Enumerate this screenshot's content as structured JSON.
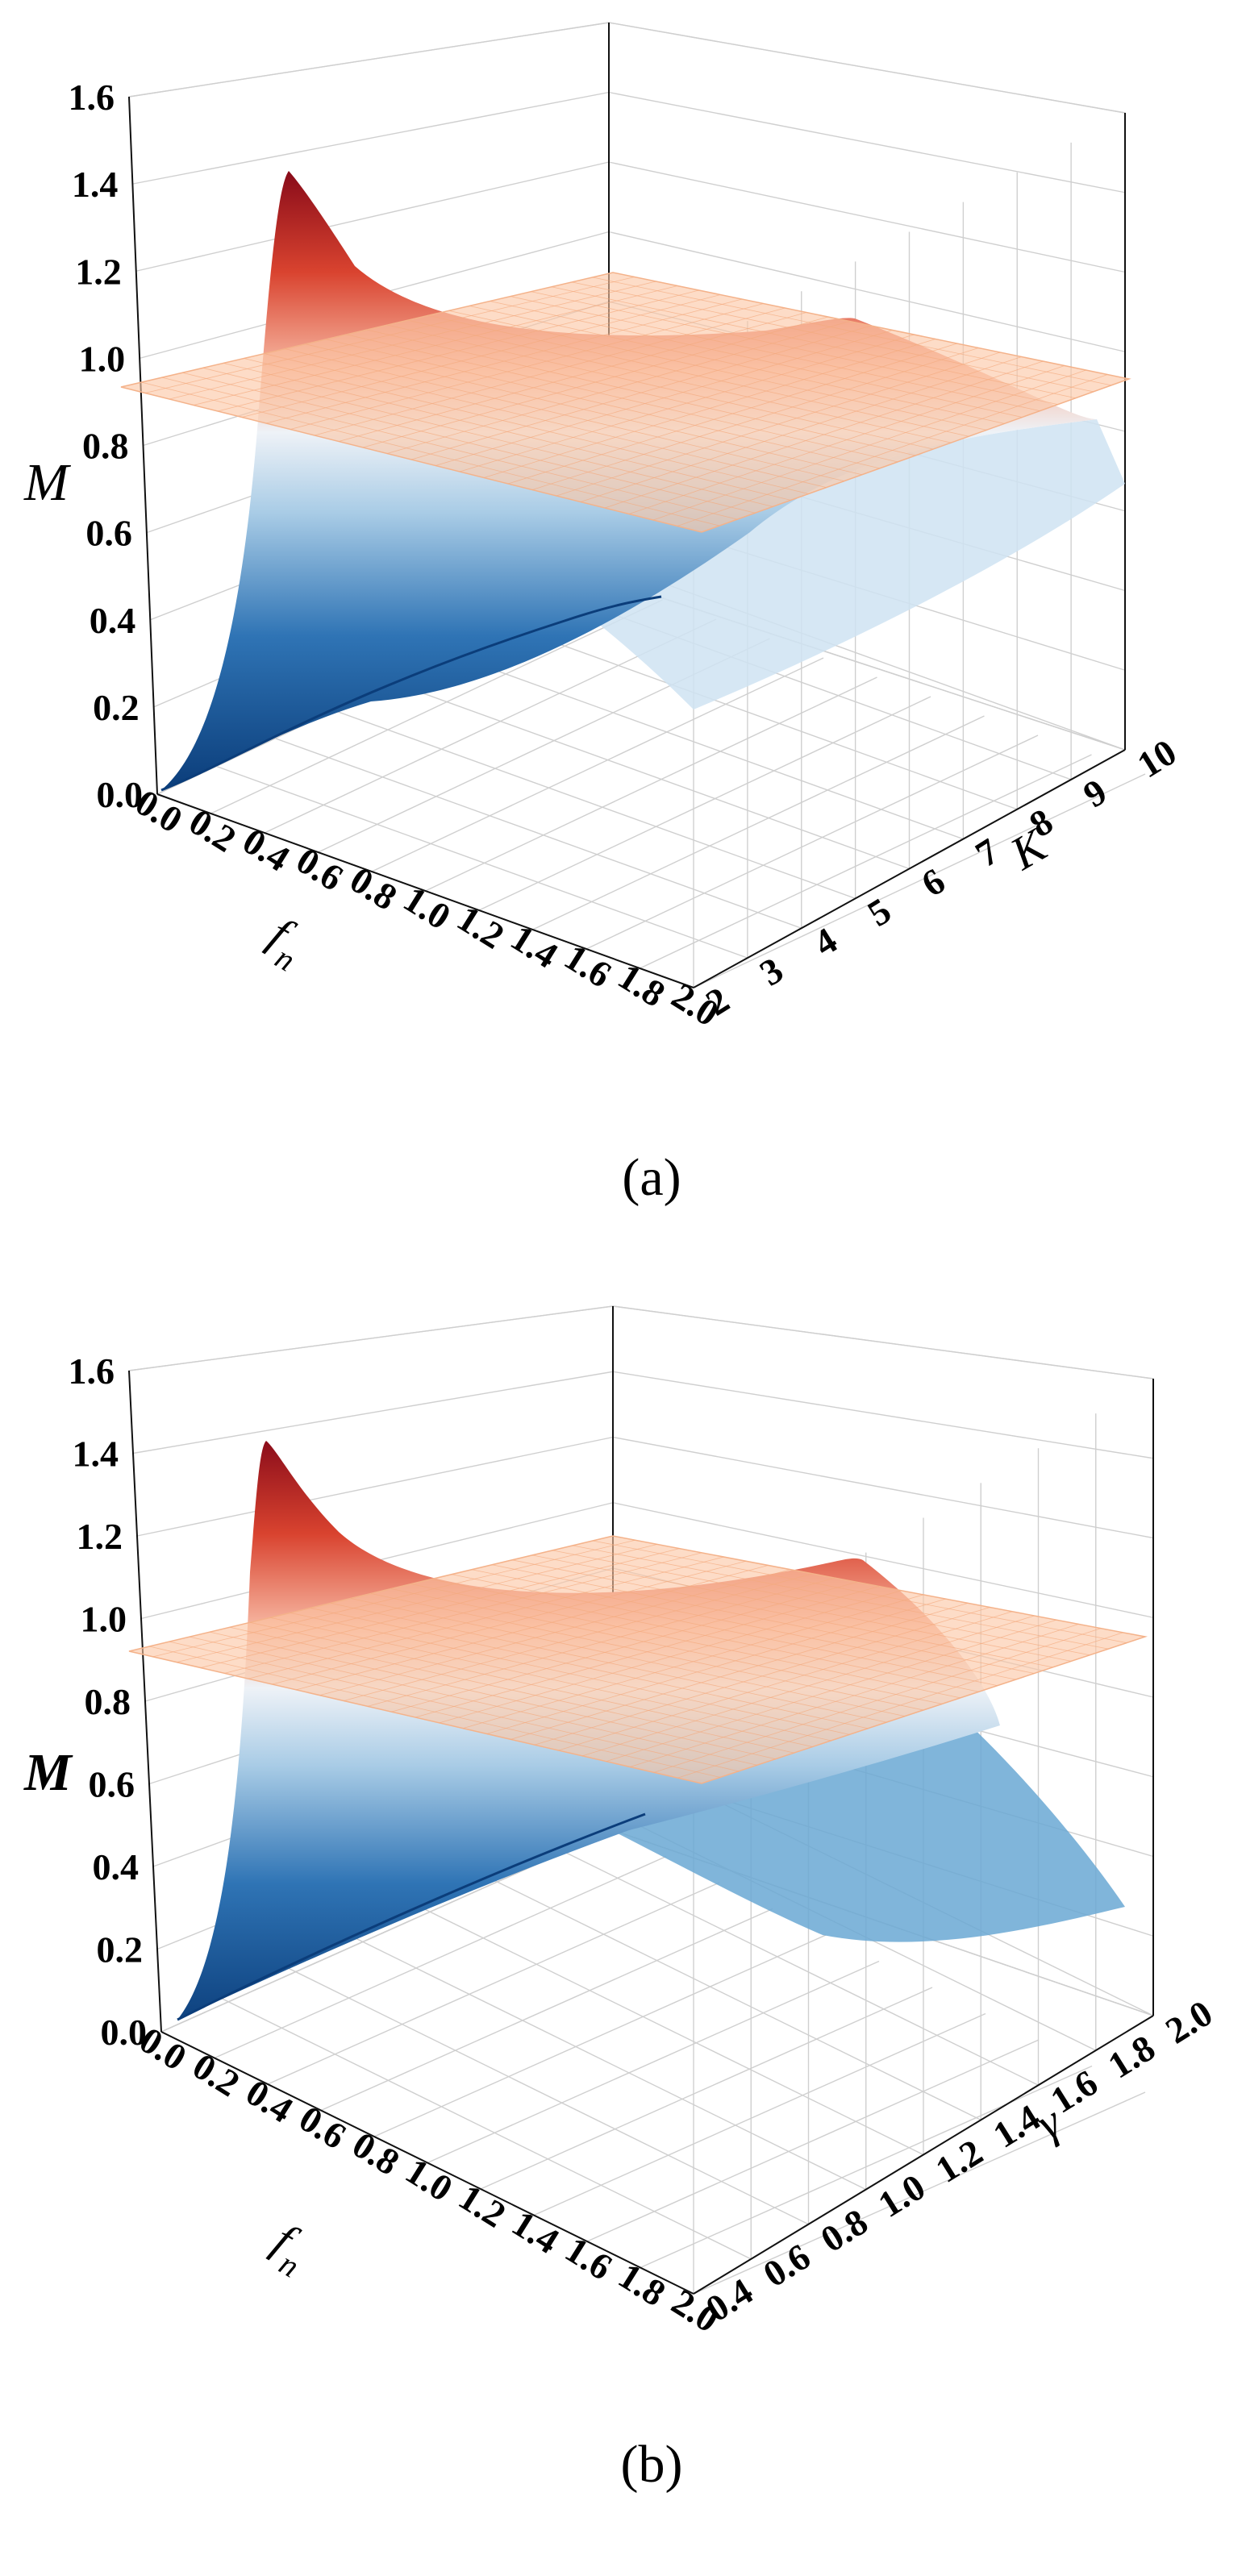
{
  "chart_data": [
    {
      "id": "a",
      "type": "surface",
      "caption": "(a)",
      "zlabel": "M",
      "xlabel": "f",
      "xlabel_sub": "n",
      "ylabel": "K",
      "xlim": [
        0.0,
        2.0
      ],
      "ylim": [
        2,
        10
      ],
      "zlim": [
        0.0,
        1.6
      ],
      "x_ticks": [
        "0.0",
        "0.2",
        "0.4",
        "0.6",
        "0.8",
        "1.0",
        "1.2",
        "1.4",
        "1.6",
        "1.8",
        "2.0"
      ],
      "y_ticks": [
        "2",
        "3",
        "4",
        "5",
        "6",
        "7",
        "8",
        "9",
        "10"
      ],
      "z_ticks": [
        "0.0",
        "0.2",
        "0.4",
        "0.6",
        "0.8",
        "1.0",
        "1.2",
        "1.4",
        "1.6"
      ],
      "reference_plane": 1.0,
      "peak": {
        "fn": 0.45,
        "K": 2,
        "M": 1.52
      },
      "colormap": [
        "#0b3d7a",
        "#2f74b5",
        "#a9cce6",
        "#eef2f7",
        "#f7b9a3",
        "#d9432f",
        "#8a0c1a"
      ]
    },
    {
      "id": "b",
      "type": "surface",
      "caption": "(b)",
      "zlabel": "M",
      "xlabel": "f",
      "xlabel_sub": "n",
      "ylabel": "γ",
      "xlim": [
        0.0,
        2.0
      ],
      "ylim": [
        0.4,
        2.0
      ],
      "zlim": [
        0.0,
        1.6
      ],
      "x_ticks": [
        "0.0",
        "0.2",
        "0.4",
        "0.6",
        "0.8",
        "1.0",
        "1.2",
        "1.4",
        "1.6",
        "1.8",
        "2.0"
      ],
      "y_ticks": [
        "0.4",
        "0.6",
        "0.8",
        "1.0",
        "1.2",
        "1.4",
        "1.6",
        "1.8",
        "2.0"
      ],
      "z_ticks": [
        "0.0",
        "0.2",
        "0.4",
        "0.6",
        "0.8",
        "1.0",
        "1.2",
        "1.4",
        "1.6"
      ],
      "reference_plane": 1.0,
      "peak": {
        "fn": 0.4,
        "gamma": 0.4,
        "M": 1.46
      },
      "colormap": [
        "#0b3d7a",
        "#2f74b5",
        "#a9cce6",
        "#eef2f7",
        "#f7b9a3",
        "#d9432f",
        "#8a0c1a"
      ]
    }
  ]
}
